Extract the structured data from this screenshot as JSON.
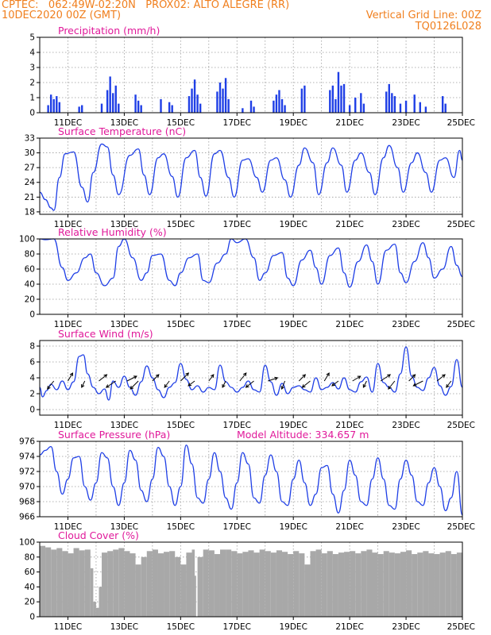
{
  "header": {
    "line1": "CPTEC:   062:49W-02:20N   PROX02: ALTO ALEGRE (RR)",
    "line2_left": "10DEC2020 00Z (GMT)",
    "line2_right": "Vertical Grid Line: 00Z",
    "line3_right": "TQ0126L028"
  },
  "colors": {
    "header": "#f07f1e",
    "title": "#e0199a",
    "series": "#1f3fe6",
    "cloud": "#a8a8a8",
    "grid": "#9a9a9a",
    "arrow": "#000000"
  },
  "chart_data": [
    {
      "type": "bar",
      "title": "Precipitation (mm/h)",
      "ylim": [
        0,
        5
      ],
      "yticks": [
        0,
        1,
        2,
        3,
        4,
        5
      ],
      "xticks": [
        "11DEC",
        "13DEC",
        "15DEC",
        "17DEC",
        "19DEC",
        "21DEC",
        "23DEC",
        "25DEC"
      ],
      "xrange_days": [
        10,
        25
      ],
      "grid": true,
      "x": [
        10.3,
        10.4,
        10.5,
        10.6,
        10.7,
        11.4,
        11.5,
        12.2,
        12.4,
        12.5,
        12.6,
        12.7,
        12.8,
        13.4,
        13.5,
        13.6,
        14.3,
        14.6,
        14.7,
        15.3,
        15.4,
        15.5,
        15.6,
        15.7,
        16.3,
        16.4,
        16.5,
        16.6,
        16.7,
        17.2,
        17.5,
        17.6,
        18.3,
        18.4,
        18.5,
        18.6,
        18.7,
        19.3,
        19.4,
        20.3,
        20.4,
        20.5,
        20.6,
        20.7,
        20.8,
        21.0,
        21.2,
        21.4,
        21.5,
        22.3,
        22.4,
        22.5,
        22.6,
        22.8,
        23.0,
        23.3,
        23.5,
        23.7,
        24.3,
        24.4
      ],
      "y": [
        0.5,
        1.2,
        0.9,
        1.1,
        0.7,
        0.4,
        0.5,
        0.6,
        1.5,
        2.4,
        1.3,
        1.8,
        0.6,
        1.2,
        0.8,
        0.5,
        0.9,
        0.7,
        0.5,
        1.1,
        1.6,
        2.2,
        1.2,
        0.6,
        1.4,
        2.0,
        1.6,
        2.3,
        0.9,
        0.3,
        0.8,
        0.4,
        0.8,
        1.2,
        1.5,
        0.9,
        0.5,
        1.6,
        1.8,
        1.5,
        1.8,
        0.9,
        2.7,
        1.8,
        1.9,
        0.5,
        1.0,
        1.3,
        0.6,
        1.4,
        1.9,
        1.3,
        1.1,
        0.6,
        0.8,
        1.2,
        0.7,
        0.4,
        1.1,
        0.6
      ]
    },
    {
      "type": "line",
      "title": "Surface Temperature (nC)",
      "ylim": [
        17.5,
        33
      ],
      "yticks": [
        18,
        21,
        24,
        27,
        30,
        33
      ],
      "xticks": [
        "11DEC",
        "13DEC",
        "15DEC",
        "17DEC",
        "19DEC",
        "21DEC",
        "23DEC",
        "25DEC"
      ],
      "xrange_days": [
        10,
        25
      ],
      "grid": true,
      "series": [
        {
          "x": [
            10.0,
            10.2,
            10.4,
            10.5,
            10.7,
            10.9,
            11.2,
            11.5,
            11.7,
            11.9,
            12.2,
            12.4,
            12.6,
            12.8,
            13.2,
            13.5,
            13.7,
            13.9,
            14.2,
            14.4,
            14.7,
            14.9,
            15.2,
            15.5,
            15.7,
            15.9,
            16.2,
            16.4,
            16.7,
            16.9,
            17.2,
            17.4,
            17.7,
            17.9,
            18.2,
            18.4,
            18.7,
            18.9,
            19.2,
            19.4,
            19.7,
            19.9,
            20.2,
            20.4,
            20.7,
            20.9,
            21.2,
            21.4,
            21.7,
            21.9,
            22.2,
            22.4,
            22.7,
            22.9,
            23.2,
            23.4,
            23.7,
            23.9,
            24.2,
            24.4,
            24.7,
            24.9,
            25.0
          ],
          "y": [
            22.0,
            20.5,
            18.8,
            18.3,
            25.0,
            29.8,
            30.2,
            23.0,
            20.0,
            26.0,
            31.8,
            31.2,
            25.5,
            21.5,
            29.5,
            30.8,
            25.5,
            21.5,
            29.0,
            29.8,
            25.2,
            21.0,
            29.0,
            30.5,
            25.0,
            21.2,
            29.8,
            30.5,
            25.0,
            21.0,
            28.5,
            28.8,
            25.0,
            22.0,
            28.5,
            29.0,
            24.5,
            21.0,
            27.5,
            31.0,
            28.0,
            21.5,
            28.0,
            31.0,
            27.5,
            22.0,
            28.5,
            30.0,
            26.0,
            21.5,
            29.0,
            31.5,
            27.0,
            22.0,
            28.0,
            30.0,
            26.0,
            22.0,
            28.5,
            29.0,
            25.0,
            30.5,
            28.5
          ]
        }
      ]
    },
    {
      "type": "line",
      "title": "Relative Humidity (%)",
      "ylim": [
        0,
        100
      ],
      "yticks": [
        0,
        20,
        40,
        60,
        80,
        100
      ],
      "xticks": [
        "11DEC",
        "13DEC",
        "15DEC",
        "17DEC",
        "19DEC",
        "21DEC",
        "23DEC",
        "25DEC"
      ],
      "xrange_days": [
        10,
        25
      ],
      "grid": true,
      "series": [
        {
          "x": [
            10.0,
            10.2,
            10.5,
            10.8,
            11.0,
            11.3,
            11.6,
            11.8,
            12.0,
            12.3,
            12.6,
            12.8,
            13.0,
            13.3,
            13.6,
            13.8,
            14.0,
            14.3,
            14.6,
            14.8,
            15.0,
            15.3,
            15.6,
            15.8,
            16.0,
            16.3,
            16.6,
            16.8,
            17.0,
            17.3,
            17.6,
            17.8,
            18.0,
            18.3,
            18.6,
            18.8,
            19.0,
            19.3,
            19.6,
            19.8,
            20.0,
            20.3,
            20.6,
            20.8,
            21.0,
            21.3,
            21.6,
            21.8,
            22.0,
            22.3,
            22.6,
            22.8,
            23.0,
            23.3,
            23.6,
            23.8,
            24.0,
            24.3,
            24.6,
            24.8,
            25.0
          ],
          "y": [
            100.0,
            99.0,
            100.0,
            62.0,
            45.0,
            55.0,
            75.0,
            80.0,
            55.0,
            38.0,
            48.0,
            90.0,
            100.0,
            75.0,
            45.0,
            55.0,
            78.0,
            80.0,
            45.0,
            38.0,
            55.0,
            75.0,
            80.0,
            45.0,
            42.0,
            68.0,
            80.0,
            100.0,
            95.0,
            100.0,
            75.0,
            45.0,
            55.0,
            78.0,
            82.0,
            48.0,
            38.0,
            72.0,
            85.0,
            62.0,
            40.0,
            78.0,
            88.0,
            55.0,
            36.0,
            70.0,
            92.0,
            70.0,
            40.0,
            85.0,
            93.0,
            55.0,
            42.0,
            70.0,
            95.0,
            75.0,
            48.0,
            60.0,
            90.0,
            65.0,
            50.0
          ]
        }
      ]
    },
    {
      "type": "line",
      "title": "Surface Wind (m/s)",
      "ylim": [
        -0.7,
        8.7
      ],
      "yticks": [
        0,
        2,
        4,
        6,
        8
      ],
      "xticks": [
        "11DEC",
        "13DEC",
        "15DEC",
        "17DEC",
        "19DEC",
        "21DEC",
        "23DEC",
        "25DEC"
      ],
      "xrange_days": [
        10,
        25
      ],
      "grid": true,
      "series": [
        {
          "x": [
            10.0,
            10.1,
            10.25,
            10.4,
            10.6,
            10.8,
            11.0,
            11.2,
            11.4,
            11.55,
            11.7,
            11.9,
            12.1,
            12.3,
            12.45,
            12.6,
            12.8,
            13.0,
            13.2,
            13.4,
            13.6,
            13.8,
            14.0,
            14.2,
            14.4,
            14.6,
            14.8,
            15.0,
            15.2,
            15.4,
            15.6,
            15.8,
            16.0,
            16.2,
            16.4,
            16.6,
            16.8,
            17.0,
            17.2,
            17.4,
            17.6,
            17.8,
            18.0,
            18.2,
            18.4,
            18.6,
            18.8,
            19.0,
            19.2,
            19.4,
            19.6,
            19.8,
            20.0,
            20.2,
            20.4,
            20.6,
            20.8,
            21.0,
            21.2,
            21.4,
            21.6,
            21.8,
            22.0,
            22.2,
            22.4,
            22.6,
            22.8,
            23.0,
            23.2,
            23.4,
            23.6,
            23.8,
            24.0,
            24.2,
            24.4,
            24.6,
            24.8,
            25.0
          ],
          "y": [
            2.8,
            1.6,
            2.4,
            3.2,
            2.5,
            3.6,
            2.5,
            3.5,
            6.7,
            6.9,
            4.5,
            2.8,
            2.0,
            2.6,
            1.2,
            3.6,
            2.8,
            4.2,
            2.8,
            1.8,
            3.5,
            5.5,
            4.0,
            2.5,
            1.5,
            2.8,
            3.4,
            5.8,
            3.8,
            2.5,
            3.0,
            2.2,
            2.8,
            2.5,
            5.6,
            3.5,
            2.8,
            2.2,
            2.8,
            3.6,
            2.5,
            2.2,
            5.6,
            3.5,
            1.8,
            3.3,
            2.0,
            2.8,
            3.0,
            2.5,
            2.2,
            4.0,
            2.5,
            2.8,
            3.4,
            2.6,
            4.0,
            2.5,
            2.2,
            3.5,
            4.1,
            2.2,
            5.8,
            3.4,
            2.8,
            2.2,
            4.5,
            7.9,
            4.2,
            2.8,
            2.4,
            4.0,
            5.3,
            3.0,
            1.8,
            2.9,
            6.3,
            2.8
          ]
        }
      ],
      "wind_arrows": {
        "x": [
          10.5,
          11.0,
          11.6,
          12.1,
          12.7,
          13.1,
          13.5,
          14.0,
          14.6,
          15.0,
          15.5,
          16.0,
          16.6,
          17.1,
          17.6,
          18.1,
          18.7,
          19.2,
          19.6,
          20.1,
          20.6,
          21.1,
          21.6,
          22.1,
          22.6,
          23.1,
          23.6,
          24.1,
          24.6
        ],
        "u": [
          -2.0,
          1.5,
          -1.0,
          2.5,
          -3.0,
          3.0,
          -2.5,
          2.0,
          -1.5,
          2.5,
          -2.0,
          1.5,
          -1.0,
          2.0,
          -2.5,
          3.0,
          -1.0,
          2.0,
          -2.5,
          1.5,
          -2.0,
          2.5,
          -1.0,
          3.0,
          -2.0,
          2.0,
          -3.0,
          2.5,
          -1.5
        ],
        "v": [
          -2.5,
          2.5,
          -2.0,
          2.0,
          -2.0,
          1.5,
          -2.5,
          2.0,
          -2.0,
          2.5,
          -1.5,
          2.0,
          -2.0,
          2.5,
          -2.0,
          1.0,
          -2.5,
          2.0,
          -2.0,
          2.5,
          -1.5,
          1.5,
          -2.0,
          2.0,
          -2.5,
          2.0,
          -1.5,
          2.0,
          -2.0
        ]
      }
    },
    {
      "type": "line",
      "title": "Surface Pressure (hPa)",
      "subtitle": "Model Altitude: 334.657 m",
      "ylim": [
        966,
        976
      ],
      "yticks": [
        966,
        968,
        970,
        972,
        974,
        976
      ],
      "xticks": [
        "11DEC",
        "13DEC",
        "15DEC",
        "17DEC",
        "19DEC",
        "21DEC",
        "23DEC",
        "25DEC"
      ],
      "xrange_days": [
        10,
        25
      ],
      "grid": true,
      "series": [
        {
          "x": [
            10.0,
            10.2,
            10.4,
            10.6,
            10.8,
            11.0,
            11.2,
            11.4,
            11.6,
            11.8,
            12.0,
            12.2,
            12.4,
            12.6,
            12.8,
            13.0,
            13.2,
            13.4,
            13.6,
            13.8,
            14.0,
            14.2,
            14.4,
            14.6,
            14.8,
            15.0,
            15.2,
            15.4,
            15.6,
            15.8,
            16.0,
            16.2,
            16.4,
            16.6,
            16.8,
            17.0,
            17.2,
            17.4,
            17.6,
            17.8,
            18.0,
            18.2,
            18.4,
            18.6,
            18.8,
            19.0,
            19.2,
            19.4,
            19.6,
            19.8,
            20.0,
            20.2,
            20.4,
            20.6,
            20.8,
            21.0,
            21.2,
            21.4,
            21.6,
            21.8,
            22.0,
            22.2,
            22.4,
            22.6,
            22.8,
            23.0,
            23.2,
            23.4,
            23.6,
            23.8,
            24.0,
            24.2,
            24.4,
            24.6,
            24.8,
            25.0
          ],
          "y": [
            974.2,
            974.8,
            975.3,
            972.0,
            969.0,
            971.0,
            973.8,
            974.0,
            970.0,
            968.2,
            970.5,
            974.5,
            973.8,
            970.0,
            967.5,
            970.5,
            974.8,
            973.5,
            969.5,
            968.0,
            971.0,
            975.2,
            974.0,
            970.0,
            967.5,
            970.0,
            975.5,
            973.0,
            968.5,
            967.8,
            971.0,
            974.5,
            972.0,
            968.5,
            967.0,
            970.5,
            974.5,
            973.0,
            968.5,
            967.8,
            971.5,
            974.2,
            972.0,
            968.0,
            967.5,
            971.0,
            973.5,
            970.5,
            967.5,
            969.0,
            972.5,
            972.8,
            969.0,
            966.5,
            969.5,
            973.5,
            971.5,
            968.0,
            967.5,
            971.0,
            973.8,
            971.0,
            967.5,
            967.0,
            971.0,
            973.5,
            971.5,
            968.0,
            967.5,
            970.5,
            972.5,
            970.0,
            966.8,
            968.5,
            972.0,
            966.2
          ]
        }
      ]
    },
    {
      "type": "area",
      "title": "Cloud Cover (%)",
      "ylim": [
        0,
        100
      ],
      "yticks": [
        0,
        20,
        40,
        60,
        80,
        100
      ],
      "xticks": [
        "11DEC",
        "13DEC",
        "15DEC",
        "17DEC",
        "19DEC",
        "21DEC",
        "23DEC",
        "25DEC"
      ],
      "xrange_days": [
        10,
        25
      ],
      "grid": true,
      "x": [
        10.0,
        10.2,
        10.4,
        10.6,
        10.8,
        11.0,
        11.2,
        11.4,
        11.6,
        11.8,
        11.9,
        12.0,
        12.1,
        12.2,
        12.4,
        12.6,
        12.8,
        13.0,
        13.2,
        13.4,
        13.6,
        13.8,
        14.0,
        14.2,
        14.4,
        14.6,
        14.8,
        15.0,
        15.2,
        15.4,
        15.5,
        15.55,
        15.6,
        15.8,
        16.0,
        16.2,
        16.4,
        16.6,
        16.8,
        17.0,
        17.2,
        17.4,
        17.6,
        17.8,
        18.0,
        18.2,
        18.4,
        18.6,
        18.8,
        19.0,
        19.2,
        19.4,
        19.6,
        19.8,
        20.0,
        20.2,
        20.4,
        20.6,
        20.8,
        21.0,
        21.2,
        21.4,
        21.6,
        21.8,
        22.0,
        22.2,
        22.4,
        22.6,
        22.8,
        23.0,
        23.2,
        23.4,
        23.6,
        23.8,
        24.0,
        24.2,
        24.4,
        24.6,
        24.8,
        25.0
      ],
      "y": [
        95,
        93,
        90,
        92,
        88,
        85,
        92,
        89,
        90,
        65,
        20,
        12,
        40,
        86,
        88,
        90,
        92,
        88,
        85,
        70,
        80,
        88,
        90,
        85,
        87,
        88,
        80,
        70,
        86,
        90,
        55,
        0,
        80,
        90,
        89,
        84,
        90,
        90,
        88,
        85,
        87,
        89,
        86,
        90,
        88,
        86,
        89,
        87,
        84,
        88,
        85,
        70,
        88,
        90,
        85,
        88,
        84,
        86,
        87,
        88,
        85,
        88,
        90,
        86,
        84,
        88,
        86,
        85,
        87,
        89,
        84,
        86,
        88,
        85,
        84,
        86,
        88,
        84,
        86,
        82
      ]
    }
  ]
}
